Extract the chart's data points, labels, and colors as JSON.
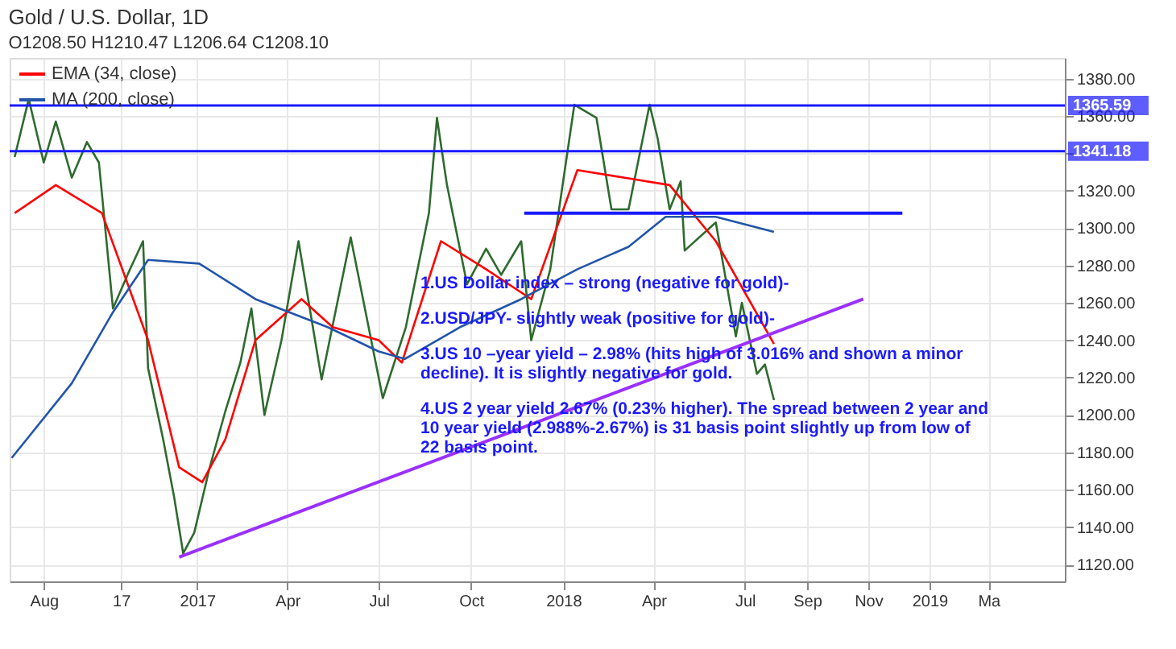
{
  "chart_data": {
    "type": "line",
    "title": "Gold / U.S. Dollar, 1D",
    "subtitle": "O1208.50  H1210.47  L1206.64  C1208.10",
    "xlim": [
      "2016-06-28",
      "2019-05-16"
    ],
    "ylim": [
      1111,
      1391
    ],
    "xticks": [
      {
        "value": "2016-08-01",
        "label": "Aug"
      },
      {
        "value": "2016-10-17",
        "label": "17"
      },
      {
        "value": "2017-01-01",
        "label": "2017"
      },
      {
        "value": "2017-04-01",
        "label": "Apr"
      },
      {
        "value": "2017-07-01",
        "label": "Jul"
      },
      {
        "value": "2017-10-01",
        "label": "Oct"
      },
      {
        "value": "2018-01-01",
        "label": "2018"
      },
      {
        "value": "2018-04-01",
        "label": "Apr"
      },
      {
        "value": "2018-07-01",
        "label": "Jul"
      },
      {
        "value": "2018-09-01",
        "label": "Sep"
      },
      {
        "value": "2018-11-01",
        "label": "Nov"
      },
      {
        "value": "2019-01-01",
        "label": "2019"
      },
      {
        "value": "2019-03-01",
        "label": "Ma"
      }
    ],
    "yticks": [
      {
        "value": 1120,
        "label": "1120.00"
      },
      {
        "value": 1140,
        "label": "1140.00"
      },
      {
        "value": 1160,
        "label": "1160.00"
      },
      {
        "value": 1180,
        "label": "1180.00"
      },
      {
        "value": 1200,
        "label": "1200.00"
      },
      {
        "value": 1220,
        "label": "1220.00"
      },
      {
        "value": 1240,
        "label": "1240.00"
      },
      {
        "value": 1260,
        "label": "1260.00"
      },
      {
        "value": 1280,
        "label": "1280.00"
      },
      {
        "value": 1300,
        "label": "1300.00"
      },
      {
        "value": 1320,
        "label": "1320.00"
      },
      {
        "value": 1340,
        "label": null
      },
      {
        "value": 1360,
        "label": "1360.00"
      },
      {
        "value": 1380,
        "label": "1380.00"
      }
    ],
    "grid": true,
    "legend": "top left",
    "marker": "none",
    "line_style": "solid",
    "series": [
      {
        "color": "#2e6b2e",
        "x": [
          "2016-07-03",
          "2016-07-17",
          "2016-08-01",
          "2016-08-13",
          "2016-08-29",
          "2016-09-13",
          "2016-09-25",
          "2016-10-09",
          "2016-10-26",
          "2016-11-08",
          "2016-11-13",
          "2016-11-28",
          "2016-12-09",
          "2016-12-18",
          "2016-12-29",
          "2017-01-13",
          "2017-01-29",
          "2017-02-13",
          "2017-02-24",
          "2017-03-09",
          "2017-03-26",
          "2017-04-12",
          "2017-05-05",
          "2017-06-03",
          "2017-07-05",
          "2017-07-28",
          "2017-08-20",
          "2017-08-28",
          "2017-09-07",
          "2017-09-27",
          "2017-10-16",
          "2017-10-31",
          "2017-11-20",
          "2017-11-30",
          "2017-12-19",
          "2018-01-12",
          "2018-02-03",
          "2018-02-18",
          "2018-03-07",
          "2018-03-28",
          "2018-04-05",
          "2018-04-17",
          "2018-04-28",
          "2018-05-02",
          "2018-06-02",
          "2018-06-22",
          "2018-06-28",
          "2018-07-13",
          "2018-07-21",
          "2018-07-30"
        ],
        "values": [
          1338,
          1369,
          1335,
          1357,
          1327,
          1346,
          1335,
          1257,
          1278,
          1293,
          1225,
          1187,
          1156,
          1126,
          1137,
          1171,
          1202,
          1228,
          1257,
          1200,
          1240,
          1293,
          1219,
          1295,
          1209,
          1247,
          1308,
          1359,
          1323,
          1270,
          1289,
          1275,
          1293,
          1240,
          1278,
          1366,
          1359,
          1310,
          1310,
          1366,
          1348,
          1310,
          1325,
          1288,
          1303,
          1242,
          1260,
          1222,
          1227,
          1208
        ]
      },
      {
        "name": "EMA (34, close)",
        "color": "#ff0000",
        "x": [
          "2016-07-03",
          "2016-08-13",
          "2016-09-28",
          "2016-11-13",
          "2016-12-14",
          "2017-01-06",
          "2017-01-29",
          "2017-02-28",
          "2017-04-15",
          "2017-05-16",
          "2017-07-01",
          "2017-07-24",
          "2017-09-01",
          "2017-10-16",
          "2017-11-30",
          "2018-01-15",
          "2018-03-02",
          "2018-04-17",
          "2018-06-02",
          "2018-07-30"
        ],
        "values": [
          1308,
          1323,
          1308,
          1240,
          1172,
          1164,
          1187,
          1240,
          1262,
          1247,
          1240,
          1228,
          1293,
          1278,
          1262,
          1331,
          1327,
          1323,
          1293,
          1238
        ]
      },
      {
        "name": "MA (200, close)",
        "color": "#2255aa",
        "x": [
          "2016-06-30",
          "2016-08-29",
          "2016-10-09",
          "2016-11-13",
          "2017-01-03",
          "2017-02-28",
          "2017-05-11",
          "2017-07-01",
          "2017-07-27",
          "2017-09-20",
          "2017-11-20",
          "2018-01-15",
          "2018-03-07",
          "2018-04-13",
          "2018-06-02",
          "2018-07-30"
        ],
        "values": [
          1177,
          1217,
          1255,
          1283,
          1281,
          1262,
          1247,
          1234,
          1230,
          1247,
          1262,
          1278,
          1290,
          1306,
          1306,
          1298
        ]
      },
      {
        "color": "#1a1aff",
        "x": [
          "2017-11-23",
          "2018-12-05"
        ],
        "values": [
          1308,
          1308
        ]
      },
      {
        "color": "#9b30ff",
        "x": [
          "2016-12-14",
          "2018-10-27"
        ],
        "values": [
          1124,
          1262
        ]
      }
    ],
    "ref_lines": [
      {
        "axis": "y",
        "value": 1365.59,
        "label": "1365.59",
        "color": "#1a1aff"
      },
      {
        "axis": "y",
        "value": 1341.18,
        "label": "1341.18",
        "color": "#1a1aff"
      }
    ],
    "annotations": [
      "1.US Dollar index – strong (negative for gold)-",
      "2.USD/JPY- slightly weak (positive for gold)-",
      "3.US 10 –year yield – 2.98% (hits high of 3.016% and shown a minor decline). It is slightly negative for gold.",
      "4.US 2 year yield 2.67% (0.23% higher). The spread between 2 year and 10 year yield (2.988%-2.67%) is 31 basis point slightly up from low of 22 basis point."
    ]
  }
}
